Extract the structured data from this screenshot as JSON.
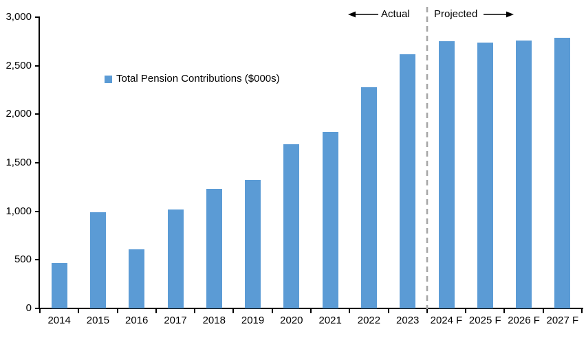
{
  "chart_data": {
    "type": "bar",
    "title": "",
    "xlabel": "",
    "ylabel": "",
    "categories": [
      "2014",
      "2015",
      "2016",
      "2017",
      "2018",
      "2019",
      "2020",
      "2021",
      "2022",
      "2023",
      "2024 F",
      "2025 F",
      "2026 F",
      "2027 F"
    ],
    "series": [
      {
        "name": "Total Pension Contributions ($000s)",
        "values": [
          470,
          990,
          610,
          1020,
          1230,
          1320,
          1690,
          1820,
          2280,
          2620,
          2750,
          2740,
          2760,
          2790
        ]
      }
    ],
    "ylim": [
      0,
      3000
    ],
    "yticks": [
      0,
      500,
      1000,
      1500,
      2000,
      2500,
      3000
    ],
    "ytick_labels": [
      "0",
      "500",
      "1,000",
      "1,500",
      "2,000",
      "2,500",
      "3,000"
    ],
    "grid": "off",
    "legend_position": "inside-upper-left",
    "bar_color": "#5B9BD5",
    "axis_color": "#000000",
    "divider_color": "#A6A6A6",
    "actual_categories_count": 10,
    "annotations": {
      "actual_label": "Actual",
      "projected_label": "Projected"
    }
  }
}
